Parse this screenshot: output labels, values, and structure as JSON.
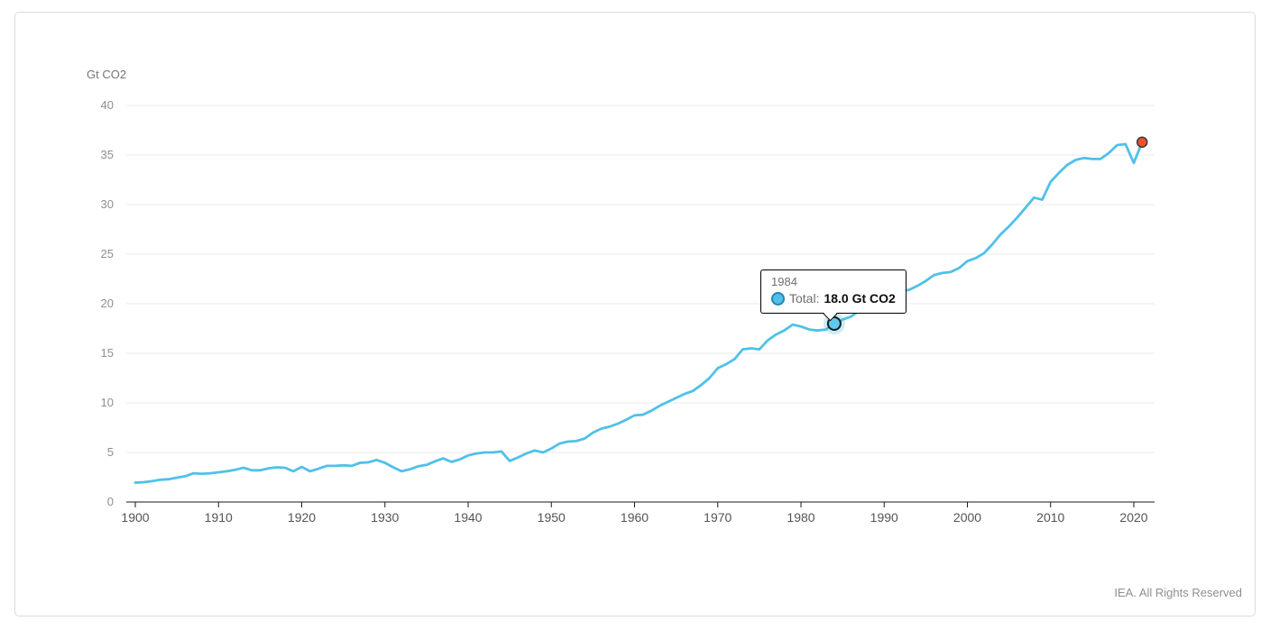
{
  "chart_data": {
    "type": "line",
    "title": "",
    "xlabel": "",
    "ylabel": "Gt CO2",
    "ylim": [
      0,
      40
    ],
    "yticks": [
      0,
      5,
      10,
      15,
      20,
      25,
      30,
      35,
      40
    ],
    "xticks": [
      1900,
      1910,
      1920,
      1930,
      1940,
      1950,
      1960,
      1970,
      1980,
      1990,
      2000,
      2010,
      2020
    ],
    "grid": "horizontal-light",
    "legend": "none",
    "x": [
      1900,
      1901,
      1902,
      1903,
      1904,
      1905,
      1906,
      1907,
      1908,
      1909,
      1910,
      1911,
      1912,
      1913,
      1914,
      1915,
      1916,
      1917,
      1918,
      1919,
      1920,
      1921,
      1922,
      1923,
      1924,
      1925,
      1926,
      1927,
      1928,
      1929,
      1930,
      1931,
      1932,
      1933,
      1934,
      1935,
      1936,
      1937,
      1938,
      1939,
      1940,
      1941,
      1942,
      1943,
      1944,
      1945,
      1946,
      1947,
      1948,
      1949,
      1950,
      1951,
      1952,
      1953,
      1954,
      1955,
      1956,
      1957,
      1958,
      1959,
      1960,
      1961,
      1962,
      1963,
      1964,
      1965,
      1966,
      1967,
      1968,
      1969,
      1970,
      1971,
      1972,
      1973,
      1974,
      1975,
      1976,
      1977,
      1978,
      1979,
      1980,
      1981,
      1982,
      1983,
      1984,
      1985,
      1986,
      1987,
      1988,
      1989,
      1990,
      1991,
      1992,
      1993,
      1994,
      1995,
      1996,
      1997,
      1998,
      1999,
      2000,
      2001,
      2002,
      2003,
      2004,
      2005,
      2006,
      2007,
      2008,
      2009,
      2010,
      2011,
      2012,
      2013,
      2014,
      2015,
      2016,
      2017,
      2018,
      2019,
      2020,
      2021
    ],
    "series": [
      {
        "name": "Total",
        "color": "#4FC1E9",
        "values": [
          1.95,
          2.0,
          2.1,
          2.25,
          2.3,
          2.45,
          2.6,
          2.9,
          2.85,
          2.9,
          3.0,
          3.1,
          3.25,
          3.45,
          3.2,
          3.2,
          3.4,
          3.5,
          3.45,
          3.1,
          3.55,
          3.1,
          3.35,
          3.65,
          3.65,
          3.7,
          3.65,
          3.95,
          4.0,
          4.25,
          3.95,
          3.5,
          3.1,
          3.3,
          3.6,
          3.75,
          4.1,
          4.4,
          4.05,
          4.3,
          4.7,
          4.9,
          5.0,
          5.0,
          5.1,
          4.15,
          4.5,
          4.9,
          5.2,
          5.0,
          5.4,
          5.9,
          6.1,
          6.15,
          6.4,
          7.0,
          7.4,
          7.6,
          7.9,
          8.3,
          8.75,
          8.8,
          9.2,
          9.7,
          10.1,
          10.5,
          10.9,
          11.2,
          11.8,
          12.5,
          13.5,
          13.9,
          14.4,
          15.4,
          15.5,
          15.4,
          16.3,
          16.9,
          17.3,
          17.9,
          17.7,
          17.4,
          17.3,
          17.4,
          18.0,
          18.4,
          18.7,
          19.3,
          19.9,
          20.3,
          20.9,
          21.2,
          21.3,
          21.4,
          21.8,
          22.3,
          22.9,
          23.1,
          23.2,
          23.6,
          24.3,
          24.6,
          25.1,
          26.0,
          27.0,
          27.8,
          28.7,
          29.7,
          30.7,
          30.5,
          32.3,
          33.2,
          34.0,
          34.5,
          34.7,
          34.6,
          34.6,
          35.2,
          36.0,
          36.1,
          34.2,
          36.3
        ]
      }
    ],
    "highlight_point": {
      "x": 1984,
      "y": 18.0,
      "fill": "#5FC9EE",
      "stroke": "#1a1a1a",
      "halo": "rgba(79,193,233,0.3)"
    },
    "end_point": {
      "x": 2021,
      "y": 36.3,
      "fill": "#F2502C",
      "stroke": "#3a3a3a"
    }
  },
  "tooltip": {
    "year": "1984",
    "series_label": "Total:",
    "value": "18.0 Gt CO2",
    "marker_fill": "#4FC1E9",
    "marker_stroke": "#2585B4"
  },
  "footer": {
    "credit": "IEA. All Rights Reserved"
  }
}
